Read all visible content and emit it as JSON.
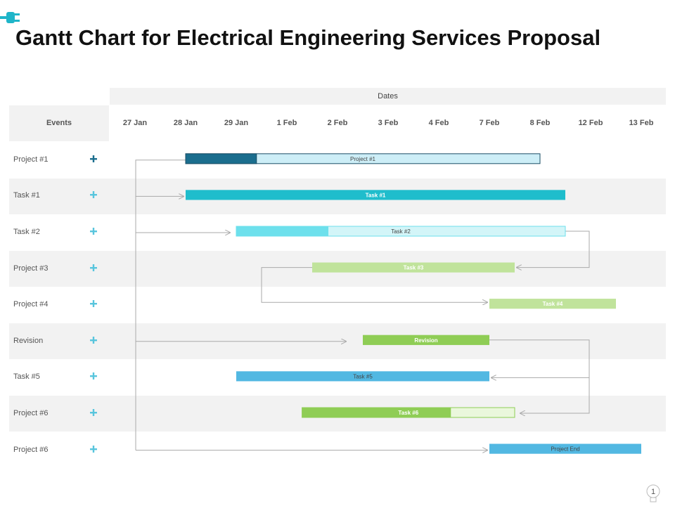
{
  "title": "Gantt Chart for Electrical Engineering Services Proposal",
  "page_number": "1",
  "colors": {
    "accent": "#1fb5c9",
    "dark_teal": "#1b6e8e",
    "light_blue": "#cdeef7",
    "teal": "#1fbdcc",
    "cyan": "#6de0ec",
    "cyan_light": "#d3f5f8",
    "light_green": "#c0e39b",
    "green": "#8fcd55",
    "green_light": "#eaf7dc",
    "sky": "#52b8e2",
    "plus": "#58c5dd",
    "plus_dark": "#1b6e8e",
    "connector": "#aaaaaa"
  },
  "chart_data": {
    "type": "gantt",
    "header": {
      "events_label": "Events",
      "dates_label": "Dates"
    },
    "dates": [
      "27 Jan",
      "28 Jan",
      "29 Jan",
      "1 Feb",
      "2 Feb",
      "3 Feb",
      "4 Feb",
      "7 Feb",
      "8 Feb",
      "12 Feb",
      "13 Feb"
    ],
    "rows": [
      {
        "event": "Project #1",
        "bar_label": "Project #1",
        "start": 1.0,
        "end": 8.0,
        "progress": 0.2,
        "fill": "#1b6e8e",
        "rest": "#cdeef7",
        "outline": true,
        "label_color": "#444444"
      },
      {
        "event": "Task #1",
        "bar_label": "Task #1",
        "start": 1.0,
        "end": 8.5,
        "progress": 1.0,
        "fill": "#1fbdcc",
        "rest": "#1fbdcc",
        "outline": false,
        "label_color": "#ffffff"
      },
      {
        "event": "Task #2",
        "bar_label": "Task #2",
        "start": 2.0,
        "end": 8.5,
        "progress": 0.28,
        "fill": "#6de0ec",
        "rest": "#d3f5f8",
        "outline": false,
        "label_color": "#444444"
      },
      {
        "event": "Project #3",
        "bar_label": "Task #3",
        "start": 3.5,
        "end": 7.5,
        "progress": 1.0,
        "fill": "#c0e39b",
        "rest": "#c0e39b",
        "outline": false,
        "label_color": "#ffffff"
      },
      {
        "event": "Project #4",
        "bar_label": "Task #4",
        "start": 7.0,
        "end": 9.5,
        "progress": 1.0,
        "fill": "#c0e39b",
        "rest": "#c0e39b",
        "outline": false,
        "label_color": "#ffffff"
      },
      {
        "event": "Revision",
        "bar_label": "Revision",
        "start": 4.5,
        "end": 7.0,
        "progress": 1.0,
        "fill": "#8fcd55",
        "rest": "#8fcd55",
        "outline": false,
        "label_color": "#ffffff"
      },
      {
        "event": "Task #5",
        "bar_label": "Task #5",
        "start": 2.0,
        "end": 7.0,
        "progress": 1.0,
        "fill": "#52b8e2",
        "rest": "#52b8e2",
        "outline": false,
        "label_color": "#444444"
      },
      {
        "event": "Project #6",
        "bar_label": "Task #6",
        "start": 3.3,
        "end": 7.5,
        "progress": 0.7,
        "fill": "#8fcd55",
        "rest": "#eaf7dc",
        "outline": false,
        "label_color": "#ffffff"
      },
      {
        "event": "Project #6",
        "bar_label": "Project End",
        "start": 7.0,
        "end": 10.0,
        "progress": 1.0,
        "fill": "#52b8e2",
        "rest": "#52b8e2",
        "outline": false,
        "label_color": "#444444"
      }
    ]
  }
}
